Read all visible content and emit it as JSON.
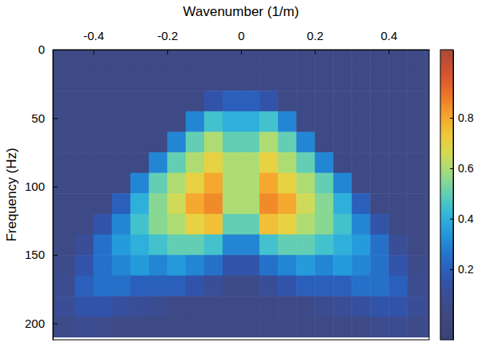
{
  "chart_data": {
    "type": "heatmap",
    "x_label": "Wavenumber (1/m)",
    "y_label": "Frequency (Hz)",
    "xlim": [
      -0.51,
      0.51
    ],
    "xticks": [
      -0.4,
      -0.2,
      0,
      0.2,
      0.4
    ],
    "ylim": [
      0,
      212
    ],
    "yticks": [
      0,
      50,
      100,
      150,
      200
    ],
    "wavenumber_edges": [
      -0.55,
      -0.5,
      -0.45,
      -0.4,
      -0.35,
      -0.3,
      -0.25,
      -0.2,
      -0.15,
      -0.1,
      -0.05,
      0,
      0.05,
      0.1,
      0.15,
      0.2,
      0.25,
      0.3,
      0.35,
      0.4,
      0.45,
      0.5,
      0.55
    ],
    "frequency_edges": [
      0,
      15,
      30,
      45,
      60,
      75,
      90,
      105,
      120,
      135,
      150,
      165,
      180,
      195,
      210
    ],
    "cells": [
      [
        0.04,
        0.04,
        0.04,
        0.04,
        0.04,
        0.04,
        0.04,
        0.04,
        0.04,
        0.04,
        0.04,
        0.04,
        0.04,
        0.04,
        0.04,
        0.04,
        0.04,
        0.04,
        0.04,
        0.04,
        0.04,
        0.04
      ],
      [
        0.04,
        0.04,
        0.04,
        0.04,
        0.04,
        0.04,
        0.04,
        0.04,
        0.04,
        0.04,
        0.04,
        0.04,
        0.04,
        0.04,
        0.04,
        0.04,
        0.04,
        0.04,
        0.04,
        0.04,
        0.04,
        0.04
      ],
      [
        0.04,
        0.04,
        0.04,
        0.04,
        0.04,
        0.04,
        0.04,
        0.04,
        0.04,
        0.15,
        0.2,
        0.2,
        0.15,
        0.04,
        0.04,
        0.04,
        0.04,
        0.04,
        0.04,
        0.04,
        0.04,
        0.04
      ],
      [
        0.04,
        0.04,
        0.04,
        0.04,
        0.04,
        0.04,
        0.04,
        0.04,
        0.3,
        0.45,
        0.4,
        0.4,
        0.45,
        0.3,
        0.04,
        0.04,
        0.04,
        0.04,
        0.04,
        0.04,
        0.04,
        0.04
      ],
      [
        0.04,
        0.04,
        0.04,
        0.04,
        0.04,
        0.04,
        0.04,
        0.3,
        0.5,
        0.6,
        0.5,
        0.5,
        0.6,
        0.5,
        0.3,
        0.04,
        0.04,
        0.04,
        0.04,
        0.04,
        0.04,
        0.04
      ],
      [
        0.04,
        0.04,
        0.04,
        0.04,
        0.04,
        0.04,
        0.3,
        0.5,
        0.6,
        0.7,
        0.6,
        0.6,
        0.7,
        0.6,
        0.5,
        0.3,
        0.04,
        0.04,
        0.04,
        0.04,
        0.04,
        0.04
      ],
      [
        0.04,
        0.04,
        0.04,
        0.04,
        0.04,
        0.3,
        0.5,
        0.6,
        0.7,
        0.8,
        0.6,
        0.6,
        0.8,
        0.7,
        0.6,
        0.5,
        0.3,
        0.04,
        0.04,
        0.04,
        0.04,
        0.04
      ],
      [
        0.04,
        0.04,
        0.04,
        0.04,
        0.2,
        0.4,
        0.55,
        0.65,
        0.8,
        0.85,
        0.6,
        0.6,
        0.85,
        0.8,
        0.65,
        0.55,
        0.4,
        0.2,
        0.04,
        0.04,
        0.04,
        0.04
      ],
      [
        0.04,
        0.04,
        0.04,
        0.15,
        0.3,
        0.45,
        0.55,
        0.6,
        0.7,
        0.75,
        0.5,
        0.5,
        0.75,
        0.7,
        0.6,
        0.55,
        0.45,
        0.3,
        0.15,
        0.04,
        0.04,
        0.04
      ],
      [
        0.04,
        0.04,
        0.1,
        0.25,
        0.35,
        0.4,
        0.45,
        0.5,
        0.5,
        0.45,
        0.3,
        0.3,
        0.45,
        0.5,
        0.5,
        0.45,
        0.4,
        0.35,
        0.25,
        0.1,
        0.04,
        0.04
      ],
      [
        0.04,
        0.06,
        0.15,
        0.25,
        0.3,
        0.35,
        0.3,
        0.35,
        0.3,
        0.25,
        0.15,
        0.15,
        0.25,
        0.3,
        0.35,
        0.3,
        0.35,
        0.3,
        0.25,
        0.15,
        0.06,
        0.04
      ],
      [
        0.04,
        0.08,
        0.2,
        0.25,
        0.25,
        0.2,
        0.2,
        0.2,
        0.15,
        0.1,
        0.06,
        0.06,
        0.1,
        0.15,
        0.2,
        0.2,
        0.2,
        0.25,
        0.25,
        0.2,
        0.08,
        0.04
      ],
      [
        0.05,
        0.1,
        0.15,
        0.15,
        0.12,
        0.1,
        0.08,
        0.05,
        0.05,
        0.05,
        0.05,
        0.05,
        0.05,
        0.05,
        0.05,
        0.08,
        0.1,
        0.12,
        0.15,
        0.15,
        0.1,
        0.05
      ],
      [
        0.04,
        0.06,
        0.08,
        0.07,
        0.04,
        0.04,
        0.04,
        0.04,
        0.04,
        0.04,
        0.04,
        0.04,
        0.04,
        0.04,
        0.04,
        0.04,
        0.04,
        0.04,
        0.07,
        0.08,
        0.06,
        0.04
      ]
    ],
    "colorbar": {
      "lim": [
        -0.08,
        1.07
      ],
      "ticks": [
        0.2,
        0.4,
        0.6,
        0.8
      ]
    }
  }
}
